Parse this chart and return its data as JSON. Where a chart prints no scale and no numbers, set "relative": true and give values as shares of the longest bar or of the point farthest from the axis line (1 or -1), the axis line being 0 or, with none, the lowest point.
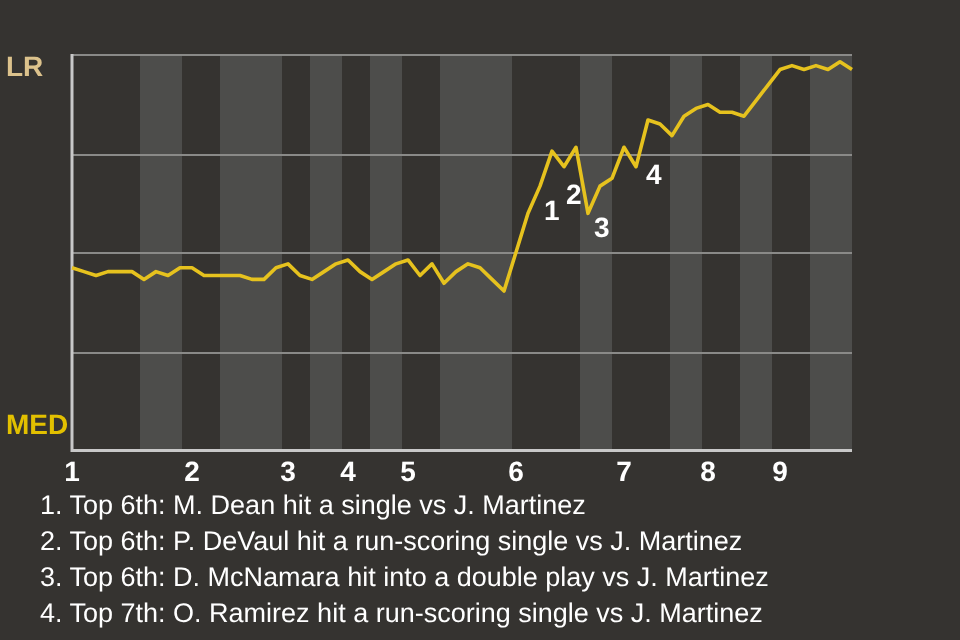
{
  "chart_data": {
    "type": "line",
    "relative": true,
    "categories": [
      "1",
      null,
      null,
      null,
      null,
      null,
      null,
      null,
      null,
      null,
      "2",
      null,
      null,
      null,
      null,
      null,
      null,
      null,
      "3",
      null,
      null,
      null,
      null,
      "4",
      null,
      null,
      null,
      null,
      "5",
      null,
      null,
      null,
      null,
      null,
      null,
      null,
      null,
      "6",
      null,
      null,
      null,
      null,
      null,
      null,
      null,
      null,
      "7",
      null,
      null,
      null,
      null,
      null,
      null,
      "8",
      null,
      null,
      null,
      null,
      null,
      "9",
      null,
      null,
      null,
      null,
      null,
      null
    ],
    "grid": "y",
    "legend": false,
    "marker": "none",
    "line_style": "solid",
    "series": [
      {
        "color": "#e6c21e",
        "values": [
          0.47,
          0.46,
          0.45,
          0.46,
          0.46,
          0.46,
          0.44,
          0.46,
          0.45,
          0.47,
          0.47,
          0.45,
          0.45,
          0.45,
          0.45,
          0.44,
          0.44,
          0.47,
          0.48,
          0.45,
          0.44,
          0.46,
          0.48,
          0.49,
          0.46,
          0.44,
          0.46,
          0.48,
          0.49,
          0.45,
          0.48,
          0.43,
          0.46,
          0.48,
          0.47,
          0.44,
          0.41,
          0.51,
          0.61,
          0.68,
          0.77,
          0.73,
          0.78,
          0.61,
          0.68,
          0.7,
          0.78,
          0.73,
          0.85,
          0.84,
          0.81,
          0.86,
          0.88,
          0.89,
          0.87,
          0.87,
          0.86,
          0.9,
          0.94,
          0.98,
          0.99,
          0.98,
          0.99,
          0.98,
          1,
          0.98
        ]
      }
    ],
    "annotations": [
      "LR",
      "MED",
      "1",
      "2",
      "3",
      "4",
      "1. Top 6th: M. Dean hit a single vs J. Martinez",
      "2. Top 6th: P. DeVaul hit a run-scoring single vs J. Martinez",
      "3. Top 6th: D. McNamara hit into a double play vs J. Martinez",
      "4. Top 7th: O. Ramirez hit a run-scoring single vs J. Martinez"
    ]
  }
}
